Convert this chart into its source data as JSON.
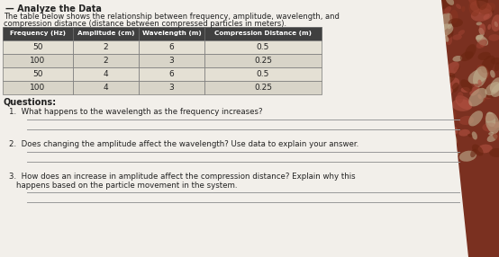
{
  "title_line": "    Analyze the Data",
  "intro_line1": "The table below shows the relationship between frequency, amplitude, wavelength, and",
  "intro_line2": "compression distance (distance between compressed particles in meters).",
  "table_headers": [
    "Frequency (Hz)",
    "Amplitude (cm)",
    "Wavelength (m)",
    "Compression Distance (m)"
  ],
  "table_rows": [
    [
      "50",
      "2",
      "6",
      "0.5"
    ],
    [
      "100",
      "2",
      "3",
      "0.25"
    ],
    [
      "50",
      "4",
      "6",
      "0.5"
    ],
    [
      "100",
      "4",
      "3",
      "0.25"
    ]
  ],
  "questions_label": "Questions:",
  "q1_prefix": "1.",
  "q1_text": "  What happens to the wavelength as the frequency increases?",
  "q2_prefix": "2.",
  "q2_text": "  Does changing the amplitude affect the wavelength? Use data to explain your answer.",
  "q3_prefix": "3.",
  "q3_line1": "  How does an increase in amplitude affect the compression distance? Explain why this",
  "q3_line2": "  happens based on the particle movement in the system.",
  "bg_dark_color": "#7a3a2a",
  "paper_color": "#f0ede4",
  "line_color": "#aaaaaa",
  "text_color": "#222222",
  "table_header_bg": "#404040",
  "table_header_text": "#ffffff",
  "table_border_color": "#888888",
  "answer_line_color": "#999999"
}
